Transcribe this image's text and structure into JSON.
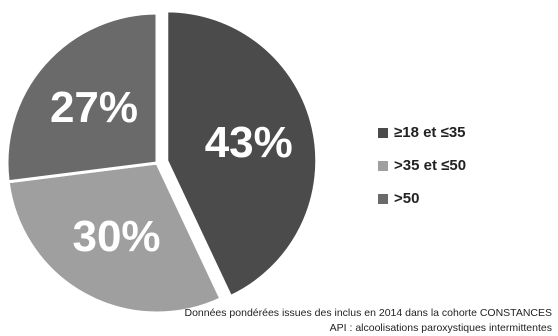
{
  "chart_data": {
    "type": "pie",
    "slices": [
      {
        "label": "≥18 et ≤35",
        "value": 43,
        "display": "43%",
        "color": "#4b4b4b"
      },
      {
        "label": ">35 et ≤50",
        "value": 30,
        "display": "30%",
        "color": "#9f9f9f"
      },
      {
        "label": ">50",
        "value": 27,
        "display": "27%",
        "color": "#6a6a6a"
      }
    ],
    "start": "12 o'clock",
    "direction": "clockwise",
    "legend_position": "right",
    "highlighted_slice": "≥18 et ≤35"
  },
  "legend": {
    "items": [
      {
        "label": "≥18 et ≤35",
        "color": "#4b4b4b"
      },
      {
        "label": ">35 et ≤50",
        "color": "#9f9f9f"
      },
      {
        "label": ">50",
        "color": "#6a6a6a"
      }
    ]
  },
  "footnotes": {
    "line1": "Données pondérées issues des inclus en 2014 dans la cohorte CONSTANCES",
    "line2": "API : alcoolisations paroxystiques intermittentes"
  }
}
